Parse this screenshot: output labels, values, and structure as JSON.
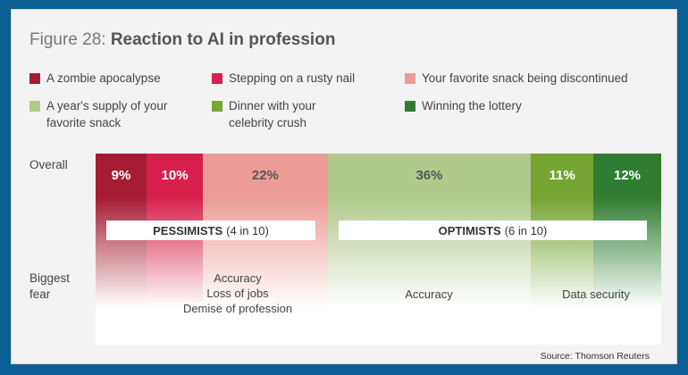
{
  "title": {
    "prefix": "Figure 28:",
    "main": "Reaction to AI in profession"
  },
  "legend": [
    {
      "lines": [
        "A zombie apocalypse"
      ],
      "color": "#a51c30"
    },
    {
      "lines": [
        "Stepping on a rusty nail"
      ],
      "color": "#d6204a"
    },
    {
      "lines": [
        "Your favorite snack being discontinued"
      ],
      "color": "#ec9c96"
    },
    {
      "lines": [
        "A year's supply of your",
        "favorite snack"
      ],
      "color": "#b1c98c"
    },
    {
      "lines": [
        "Dinner with your",
        "celebrity crush"
      ],
      "color": "#75a533"
    },
    {
      "lines": [
        "Winning the lottery"
      ],
      "color": "#2f7d32"
    }
  ],
  "chart_data": {
    "type": "bar",
    "orientation": "horizontal-stacked",
    "categories": [
      "Overall"
    ],
    "series": [
      {
        "name": "A zombie apocalypse",
        "values": [
          9
        ],
        "label": "9%",
        "color": "#a51c30",
        "text_color": "#ffffff"
      },
      {
        "name": "Stepping on a rusty nail",
        "values": [
          10
        ],
        "label": "10%",
        "color": "#d6204a",
        "text_color": "#ffffff"
      },
      {
        "name": "Your favorite snack being discontinued",
        "values": [
          22
        ],
        "label": "22%",
        "color": "#ec9c96",
        "text_color": "#555555"
      },
      {
        "name": "A year's supply of your favorite snack",
        "values": [
          36
        ],
        "label": "36%",
        "color": "#b1c98c",
        "text_color": "#555555"
      },
      {
        "name": "Dinner with your celebrity crush",
        "values": [
          11
        ],
        "label": "11%",
        "color": "#75a533",
        "text_color": "#ffffff"
      },
      {
        "name": "Winning the lottery",
        "values": [
          12
        ],
        "label": "12%",
        "color": "#2f7d32",
        "text_color": "#ffffff"
      }
    ],
    "unit": "%",
    "legend_position": "top"
  },
  "row_labels": {
    "overall": "Overall",
    "fear": [
      "Biggest",
      "fear"
    ]
  },
  "groups": [
    {
      "name": "PESSIMISTS",
      "detail": "(4 in 10)",
      "fears": [
        "Accuracy",
        "Loss of jobs",
        "Demise of profession"
      ]
    },
    {
      "name": "OPTIMISTS",
      "detail": "(6 in 10)",
      "fears_a": [
        "Accuracy"
      ],
      "fears_b": [
        "Data security"
      ]
    }
  ],
  "source": "Source: Thomson Reuters"
}
